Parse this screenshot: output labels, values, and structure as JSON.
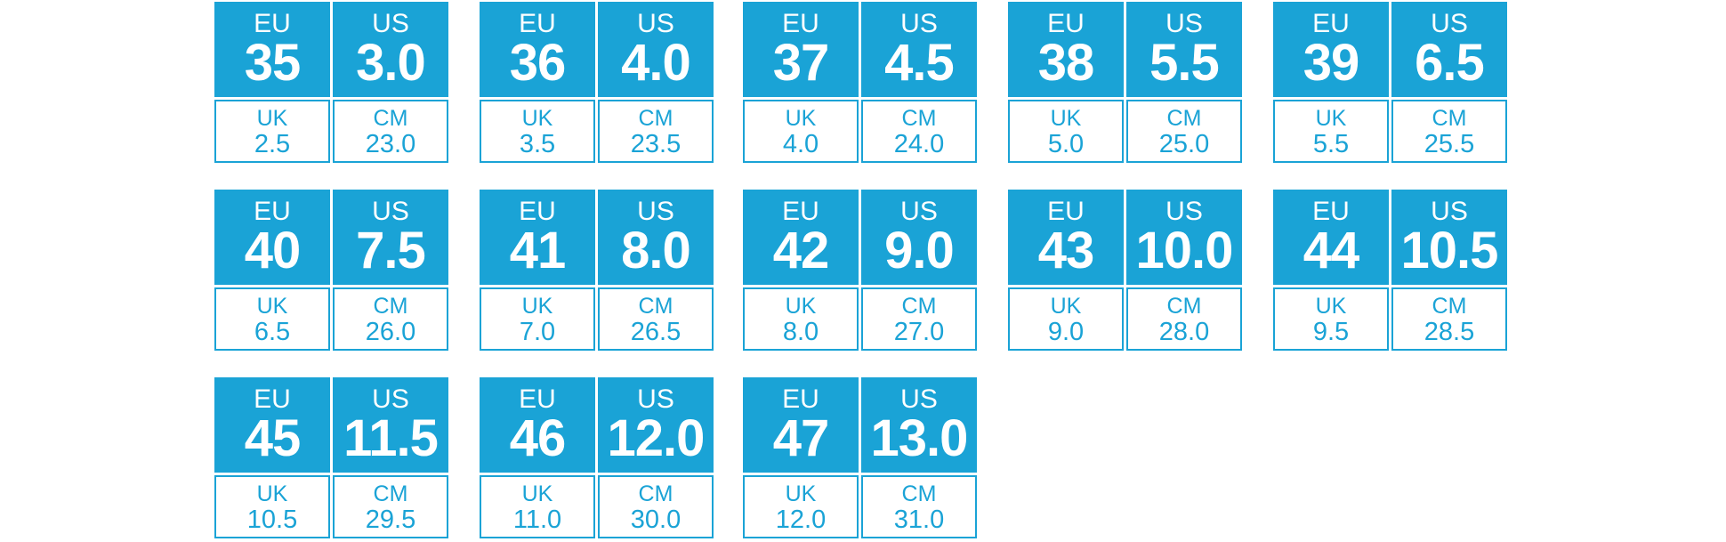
{
  "labels": {
    "eu": "EU",
    "us": "US",
    "uk": "UK",
    "cm": "CM"
  },
  "cards": [
    {
      "eu": "35",
      "us": "3.0",
      "uk": "2.5",
      "cm": "23.0"
    },
    {
      "eu": "36",
      "us": "4.0",
      "uk": "3.5",
      "cm": "23.5"
    },
    {
      "eu": "37",
      "us": "4.5",
      "uk": "4.0",
      "cm": "24.0"
    },
    {
      "eu": "38",
      "us": "5.5",
      "uk": "5.0",
      "cm": "25.0"
    },
    {
      "eu": "39",
      "us": "6.5",
      "uk": "5.5",
      "cm": "25.5"
    },
    {
      "eu": "40",
      "us": "7.5",
      "uk": "6.5",
      "cm": "26.0"
    },
    {
      "eu": "41",
      "us": "8.0",
      "uk": "7.0",
      "cm": "26.5"
    },
    {
      "eu": "42",
      "us": "9.0",
      "uk": "8.0",
      "cm": "27.0"
    },
    {
      "eu": "43",
      "us": "10.0",
      "uk": "9.0",
      "cm": "28.0"
    },
    {
      "eu": "44",
      "us": "10.5",
      "uk": "9.5",
      "cm": "28.5"
    },
    {
      "eu": "45",
      "us": "11.5",
      "uk": "10.5",
      "cm": "29.5"
    },
    {
      "eu": "46",
      "us": "12.0",
      "uk": "11.0",
      "cm": "30.0"
    },
    {
      "eu": "47",
      "us": "13.0",
      "uk": "12.0",
      "cm": "31.0"
    }
  ]
}
